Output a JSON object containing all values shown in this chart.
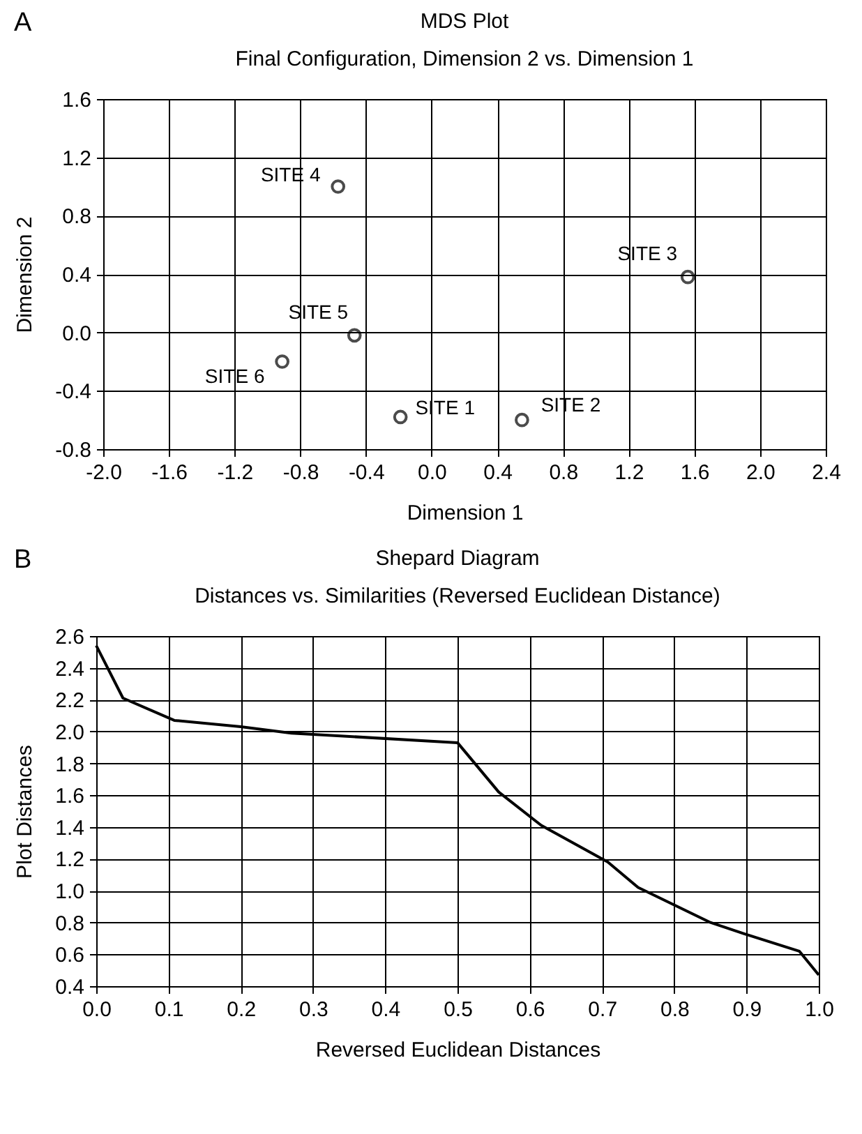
{
  "chart_data": [
    {
      "type": "scatter",
      "title": "MDS Plot",
      "subtitle": "Final Configuration, Dimension 2 vs. Dimension 1",
      "xlabel": "Dimension 1",
      "ylabel": "Dimension 2",
      "x": [
        -0.19,
        0.55,
        1.56,
        -0.57,
        -0.47,
        -0.91
      ],
      "series": [
        {
          "color": "#000000",
          "values": [
            -0.58,
            -0.6,
            0.38,
            1.0,
            -0.02,
            -0.2
          ]
        }
      ],
      "annotations": [
        "A",
        {
          "text": "SITE 1",
          "x": -0.19,
          "y": -0.58
        },
        {
          "text": "SITE 2",
          "x": 0.55,
          "y": -0.6
        },
        {
          "text": "SITE 3",
          "x": 1.56,
          "y": 0.38
        },
        {
          "text": "SITE 4",
          "x": -0.57,
          "y": 1.0
        },
        {
          "text": "SITE 5",
          "x": -0.47,
          "y": -0.02
        },
        {
          "text": "SITE 6",
          "x": -0.91,
          "y": -0.2
        }
      ],
      "xlim": [
        -2.0,
        2.4
      ],
      "xticks": [
        {
          "value": -2,
          "label": "-2.0"
        },
        -1.6,
        -1.2,
        -0.8,
        -0.4,
        {
          "value": 0,
          "label": "0.0"
        },
        0.4,
        0.8,
        1.2,
        1.6,
        {
          "value": 2,
          "label": "2.0"
        },
        2.4
      ],
      "ylim": [
        -0.8,
        1.6
      ],
      "yticks": [
        -0.8,
        -0.4,
        {
          "value": 0,
          "label": "0.0"
        },
        0.4,
        0.8,
        1.2,
        1.6
      ],
      "grid": true,
      "marker": "circle"
    },
    {
      "type": "line",
      "title": "Shepard Diagram",
      "subtitle": "Distances vs. Similarities (Reversed Euclidean Distance)",
      "xlabel": "Reversed Euclidean Distances",
      "ylabel": "Plot Distances",
      "x": [
        0.0,
        0.037,
        0.108,
        0.2,
        0.27,
        0.5,
        0.557,
        0.616,
        0.708,
        0.75,
        0.85,
        0.896,
        0.973,
        1.0
      ],
      "series": [
        {
          "color": "#000000",
          "values": [
            2.54,
            2.21,
            2.07,
            2.03,
            1.99,
            1.93,
            1.62,
            1.41,
            1.18,
            1.02,
            0.8,
            0.73,
            0.62,
            0.47
          ]
        }
      ],
      "annotations": [
        "B"
      ],
      "xlim": [
        0.0,
        1.0
      ],
      "xticks": [
        {
          "value": 0,
          "label": "0.0"
        },
        0.1,
        0.2,
        0.3,
        0.4,
        0.5,
        0.6,
        0.7,
        0.8,
        0.9,
        {
          "value": 1,
          "label": "1.0"
        }
      ],
      "ylim": [
        0.4,
        2.6
      ],
      "yticks": [
        0.4,
        0.6,
        0.8,
        {
          "value": 1,
          "label": "1.0"
        },
        1.2,
        1.4,
        1.6,
        1.8,
        {
          "value": 2,
          "label": "2.0"
        },
        2.2,
        2.4,
        2.6
      ],
      "grid": true,
      "marker": "none",
      "line_style": "solid"
    }
  ]
}
